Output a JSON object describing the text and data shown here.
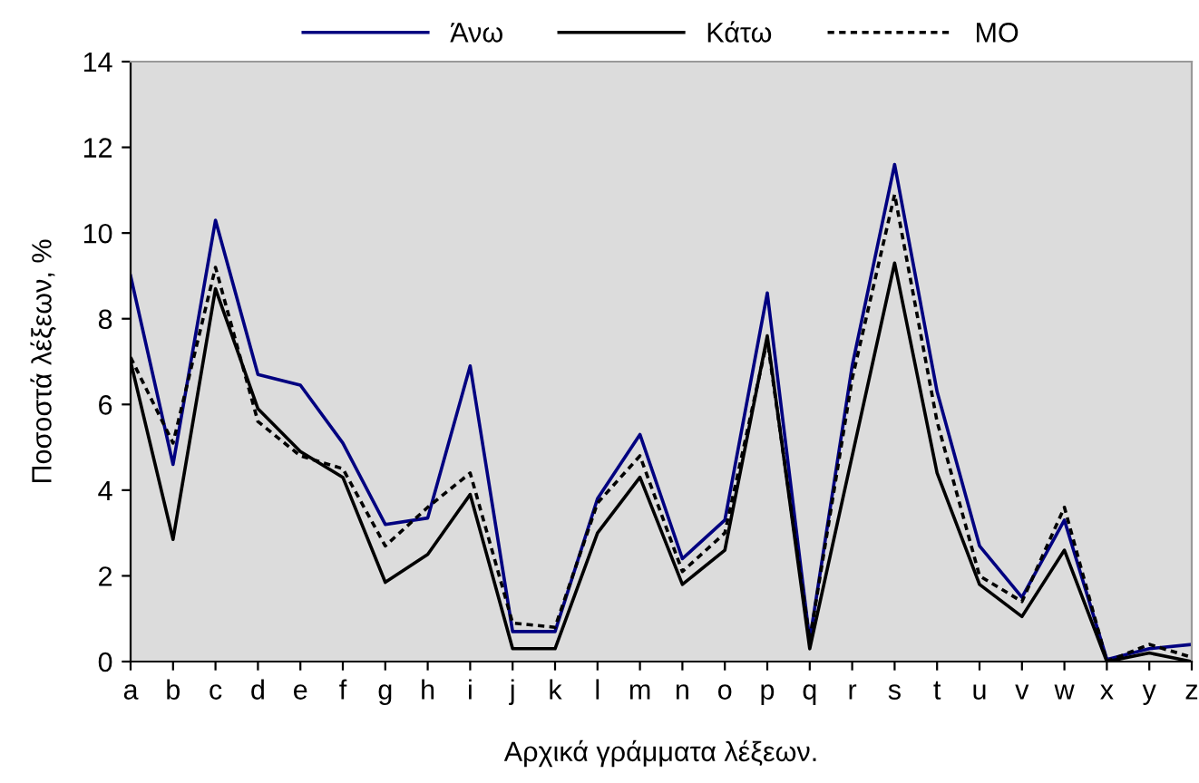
{
  "chart_data": {
    "type": "line",
    "xlabel": "Αρχικά γράμματα λέξεων.",
    "ylabel": "Ποσοστά λέξεων, %",
    "categories": [
      "a",
      "b",
      "c",
      "d",
      "e",
      "f",
      "g",
      "h",
      "i",
      "j",
      "k",
      "l",
      "m",
      "n",
      "o",
      "p",
      "q",
      "r",
      "s",
      "t",
      "u",
      "v",
      "w",
      "x",
      "y",
      "z"
    ],
    "series": [
      {
        "name": "Άνω",
        "color": "#000080",
        "line_style": "solid",
        "values": [
          9.0,
          4.6,
          10.3,
          6.7,
          6.45,
          5.1,
          3.2,
          3.35,
          6.9,
          0.7,
          0.7,
          3.8,
          5.3,
          2.4,
          3.3,
          8.6,
          0.5,
          6.9,
          11.6,
          6.3,
          2.7,
          1.5,
          3.3,
          0.05,
          0.3,
          0.4
        ]
      },
      {
        "name": "Κάτω",
        "color": "#000000",
        "line_style": "solid",
        "values": [
          7.0,
          2.85,
          8.7,
          5.9,
          4.9,
          4.3,
          1.85,
          2.5,
          3.9,
          0.3,
          0.3,
          3.0,
          4.3,
          1.8,
          2.6,
          7.6,
          0.3,
          4.8,
          9.3,
          4.4,
          1.8,
          1.05,
          2.6,
          0.0,
          0.2,
          0.0
        ]
      },
      {
        "name": "MO",
        "color": "#000000",
        "line_style": "dotted",
        "values": [
          7.1,
          5.1,
          9.2,
          5.6,
          4.8,
          4.5,
          2.7,
          3.6,
          4.4,
          0.9,
          0.8,
          3.7,
          4.8,
          2.1,
          3.0,
          7.5,
          0.5,
          6.6,
          10.9,
          5.6,
          2.0,
          1.4,
          3.6,
          0.0,
          0.4,
          0.1
        ]
      }
    ],
    "ylim": [
      0,
      14
    ],
    "yticks": [
      0,
      2,
      4,
      6,
      8,
      10,
      12,
      14
    ],
    "grid": false,
    "legend": "top",
    "marker": "none"
  }
}
